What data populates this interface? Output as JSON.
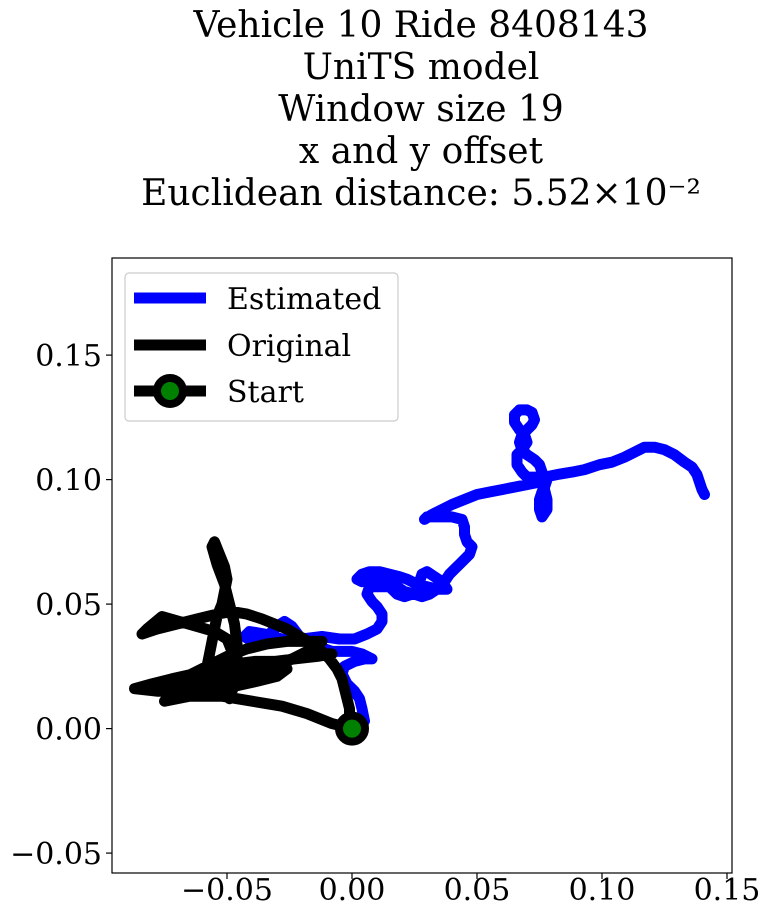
{
  "chart_data": {
    "type": "line",
    "title_lines": [
      "Vehicle 10 Ride 8408143",
      "UniTS model",
      "Window size 19",
      "x and y offset",
      "Euclidean distance: 5.52×10⁻²"
    ],
    "xlabel": "",
    "ylabel": "",
    "xlim": [
      -0.096,
      0.152
    ],
    "ylim": [
      -0.058,
      0.189
    ],
    "xticks": [
      -0.05,
      0.0,
      0.05,
      0.1,
      0.15
    ],
    "xtick_labels": [
      "−0.05",
      "0.00",
      "0.05",
      "0.10",
      "0.15"
    ],
    "yticks": [
      -0.05,
      0.0,
      0.05,
      0.1,
      0.15
    ],
    "ytick_labels": [
      "−0.05",
      "0.00",
      "0.05",
      "0.10",
      "0.15"
    ],
    "grid": false,
    "legend_position": "upper-left",
    "series": [
      {
        "name": "Estimated",
        "color": "#0000ff",
        "points": [
          [
            0.005,
            0.003
          ],
          [
            0.004,
            0.008
          ],
          [
            0.003,
            0.012
          ],
          [
            0.001,
            0.015
          ],
          [
            -0.002,
            0.018
          ],
          [
            -0.004,
            0.022
          ],
          [
            -0.003,
            0.025
          ],
          [
            0.001,
            0.027
          ],
          [
            0.005,
            0.028
          ],
          [
            0.008,
            0.028
          ],
          [
            0.004,
            0.03
          ],
          [
            0.0,
            0.031
          ],
          [
            -0.004,
            0.031
          ],
          [
            -0.008,
            0.031
          ],
          [
            -0.011,
            0.032
          ],
          [
            -0.014,
            0.033
          ],
          [
            -0.017,
            0.035
          ],
          [
            -0.021,
            0.037
          ],
          [
            -0.024,
            0.041
          ],
          [
            -0.027,
            0.043
          ],
          [
            -0.03,
            0.041
          ],
          [
            -0.033,
            0.038
          ],
          [
            -0.036,
            0.036
          ],
          [
            -0.04,
            0.035
          ],
          [
            -0.043,
            0.037
          ],
          [
            -0.041,
            0.039
          ],
          [
            -0.035,
            0.038
          ],
          [
            -0.028,
            0.036
          ],
          [
            -0.02,
            0.036
          ],
          [
            -0.012,
            0.037
          ],
          [
            -0.005,
            0.036
          ],
          [
            0.001,
            0.036
          ],
          [
            0.006,
            0.038
          ],
          [
            0.01,
            0.04
          ],
          [
            0.012,
            0.043
          ],
          [
            0.012,
            0.046
          ],
          [
            0.01,
            0.049
          ],
          [
            0.008,
            0.051
          ],
          [
            0.006,
            0.054
          ],
          [
            0.007,
            0.057
          ],
          [
            0.011,
            0.057
          ],
          [
            0.015,
            0.057
          ],
          [
            0.018,
            0.054
          ],
          [
            0.021,
            0.053
          ],
          [
            0.024,
            0.054
          ],
          [
            0.026,
            0.056
          ],
          [
            0.027,
            0.059
          ],
          [
            0.028,
            0.062
          ],
          [
            0.03,
            0.063
          ],
          [
            0.033,
            0.061
          ],
          [
            0.036,
            0.059
          ],
          [
            0.038,
            0.056
          ],
          [
            0.034,
            0.056
          ],
          [
            0.03,
            0.057
          ],
          [
            0.026,
            0.058
          ],
          [
            0.022,
            0.06
          ],
          [
            0.019,
            0.061
          ],
          [
            0.015,
            0.062
          ],
          [
            0.011,
            0.063
          ],
          [
            0.007,
            0.063
          ],
          [
            0.004,
            0.062
          ],
          [
            0.002,
            0.06
          ],
          [
            0.004,
            0.059
          ],
          [
            0.008,
            0.06
          ],
          [
            0.011,
            0.059
          ],
          [
            0.014,
            0.058
          ],
          [
            0.018,
            0.057
          ],
          [
            0.021,
            0.055
          ],
          [
            0.025,
            0.054
          ],
          [
            0.028,
            0.053
          ],
          [
            0.031,
            0.054
          ],
          [
            0.034,
            0.056
          ],
          [
            0.037,
            0.059
          ],
          [
            0.039,
            0.062
          ],
          [
            0.041,
            0.064
          ],
          [
            0.043,
            0.066
          ],
          [
            0.045,
            0.068
          ],
          [
            0.047,
            0.07
          ],
          [
            0.048,
            0.073
          ],
          [
            0.046,
            0.075
          ],
          [
            0.045,
            0.078
          ],
          [
            0.045,
            0.081
          ],
          [
            0.044,
            0.084
          ],
          [
            0.04,
            0.085
          ],
          [
            0.035,
            0.085
          ],
          [
            0.03,
            0.085
          ],
          [
            0.029,
            0.084
          ],
          [
            0.032,
            0.086
          ],
          [
            0.036,
            0.088
          ],
          [
            0.04,
            0.09
          ],
          [
            0.045,
            0.092
          ],
          [
            0.05,
            0.094
          ],
          [
            0.055,
            0.095
          ],
          [
            0.06,
            0.096
          ],
          [
            0.065,
            0.097
          ],
          [
            0.07,
            0.098
          ],
          [
            0.075,
            0.099
          ],
          [
            0.078,
            0.1
          ],
          [
            0.077,
            0.097
          ],
          [
            0.076,
            0.095
          ],
          [
            0.075,
            0.092
          ],
          [
            0.075,
            0.088
          ],
          [
            0.076,
            0.085
          ],
          [
            0.078,
            0.088
          ],
          [
            0.078,
            0.092
          ],
          [
            0.077,
            0.096
          ],
          [
            0.077,
            0.1
          ],
          [
            0.076,
            0.103
          ],
          [
            0.075,
            0.106
          ],
          [
            0.073,
            0.108
          ],
          [
            0.07,
            0.11
          ],
          [
            0.068,
            0.112
          ],
          [
            0.067,
            0.115
          ],
          [
            0.068,
            0.118
          ],
          [
            0.07,
            0.12
          ],
          [
            0.072,
            0.122
          ],
          [
            0.073,
            0.124
          ],
          [
            0.072,
            0.127
          ],
          [
            0.07,
            0.128
          ],
          [
            0.067,
            0.128
          ],
          [
            0.065,
            0.126
          ],
          [
            0.065,
            0.123
          ],
          [
            0.067,
            0.12
          ],
          [
            0.069,
            0.118
          ],
          [
            0.07,
            0.115
          ],
          [
            0.068,
            0.112
          ],
          [
            0.066,
            0.11
          ],
          [
            0.066,
            0.106
          ],
          [
            0.068,
            0.103
          ],
          [
            0.07,
            0.101
          ],
          [
            0.073,
            0.101
          ],
          [
            0.077,
            0.101
          ],
          [
            0.082,
            0.102
          ],
          [
            0.088,
            0.103
          ],
          [
            0.093,
            0.104
          ],
          [
            0.099,
            0.106
          ],
          [
            0.104,
            0.107
          ],
          [
            0.109,
            0.109
          ],
          [
            0.113,
            0.111
          ],
          [
            0.117,
            0.113
          ],
          [
            0.121,
            0.113
          ],
          [
            0.125,
            0.112
          ],
          [
            0.129,
            0.11
          ],
          [
            0.133,
            0.107
          ],
          [
            0.136,
            0.105
          ],
          [
            0.138,
            0.102
          ],
          [
            0.139,
            0.099
          ],
          [
            0.14,
            0.096
          ],
          [
            0.141,
            0.094
          ]
        ]
      },
      {
        "name": "Original",
        "color": "#000000",
        "points": [
          [
            0.0,
            0.0
          ],
          [
            -0.008,
            0.002
          ],
          [
            -0.018,
            0.006
          ],
          [
            -0.028,
            0.009
          ],
          [
            -0.04,
            0.011
          ],
          [
            -0.052,
            0.013
          ],
          [
            -0.065,
            0.013
          ],
          [
            -0.075,
            0.011
          ],
          [
            -0.07,
            0.012
          ],
          [
            -0.06,
            0.015
          ],
          [
            -0.05,
            0.018
          ],
          [
            -0.042,
            0.021
          ],
          [
            -0.034,
            0.023
          ],
          [
            -0.026,
            0.024
          ],
          [
            -0.03,
            0.021
          ],
          [
            -0.038,
            0.019
          ],
          [
            -0.047,
            0.017
          ],
          [
            -0.056,
            0.016
          ],
          [
            -0.067,
            0.015
          ],
          [
            -0.078,
            0.015
          ],
          [
            -0.087,
            0.016
          ],
          [
            -0.08,
            0.018
          ],
          [
            -0.072,
            0.02
          ],
          [
            -0.063,
            0.022
          ],
          [
            -0.055,
            0.024
          ],
          [
            -0.047,
            0.026
          ],
          [
            -0.039,
            0.027
          ],
          [
            -0.031,
            0.027
          ],
          [
            -0.023,
            0.028
          ],
          [
            -0.014,
            0.029
          ],
          [
            -0.008,
            0.03
          ],
          [
            -0.012,
            0.03
          ],
          [
            -0.02,
            0.029
          ],
          [
            -0.028,
            0.027
          ],
          [
            -0.036,
            0.025
          ],
          [
            -0.044,
            0.023
          ],
          [
            -0.052,
            0.021
          ],
          [
            -0.059,
            0.02
          ],
          [
            -0.066,
            0.019
          ],
          [
            -0.072,
            0.018
          ],
          [
            -0.066,
            0.021
          ],
          [
            -0.058,
            0.025
          ],
          [
            -0.05,
            0.029
          ],
          [
            -0.042,
            0.032
          ],
          [
            -0.034,
            0.034
          ],
          [
            -0.026,
            0.035
          ],
          [
            -0.018,
            0.035
          ],
          [
            -0.012,
            0.035
          ],
          [
            -0.016,
            0.032
          ],
          [
            -0.022,
            0.029
          ],
          [
            -0.028,
            0.026
          ],
          [
            -0.034,
            0.023
          ],
          [
            -0.04,
            0.02
          ],
          [
            -0.046,
            0.018
          ],
          [
            -0.052,
            0.016
          ],
          [
            -0.056,
            0.017
          ],
          [
            -0.058,
            0.02
          ],
          [
            -0.058,
            0.025
          ],
          [
            -0.057,
            0.03
          ],
          [
            -0.056,
            0.035
          ],
          [
            -0.055,
            0.04
          ],
          [
            -0.054,
            0.045
          ],
          [
            -0.052,
            0.05
          ],
          [
            -0.051,
            0.055
          ],
          [
            -0.05,
            0.06
          ],
          [
            -0.051,
            0.065
          ],
          [
            -0.053,
            0.07
          ],
          [
            -0.055,
            0.075
          ],
          [
            -0.056,
            0.073
          ],
          [
            -0.054,
            0.066
          ],
          [
            -0.051,
            0.058
          ],
          [
            -0.049,
            0.05
          ],
          [
            -0.047,
            0.042
          ],
          [
            -0.046,
            0.034
          ],
          [
            -0.046,
            0.026
          ],
          [
            -0.047,
            0.018
          ],
          [
            -0.049,
            0.012
          ],
          [
            -0.048,
            0.017
          ],
          [
            -0.047,
            0.024
          ],
          [
            -0.048,
            0.031
          ],
          [
            -0.05,
            0.036
          ],
          [
            -0.055,
            0.039
          ],
          [
            -0.062,
            0.041
          ],
          [
            -0.069,
            0.043
          ],
          [
            -0.076,
            0.045
          ],
          [
            -0.082,
            0.04
          ],
          [
            -0.084,
            0.038
          ],
          [
            -0.078,
            0.04
          ],
          [
            -0.07,
            0.042
          ],
          [
            -0.062,
            0.044
          ],
          [
            -0.054,
            0.046
          ],
          [
            -0.048,
            0.047
          ],
          [
            -0.042,
            0.046
          ],
          [
            -0.036,
            0.044
          ],
          [
            -0.031,
            0.042
          ],
          [
            -0.026,
            0.04
          ],
          [
            -0.021,
            0.037
          ],
          [
            -0.016,
            0.034
          ],
          [
            -0.012,
            0.031
          ],
          [
            -0.009,
            0.028
          ],
          [
            -0.006,
            0.024
          ],
          [
            -0.004,
            0.02
          ],
          [
            -0.003,
            0.016
          ],
          [
            -0.002,
            0.012
          ],
          [
            -0.001,
            0.008
          ],
          [
            -0.001,
            0.004
          ],
          [
            0.0,
            0.0
          ]
        ]
      }
    ],
    "start_point": {
      "name": "Start",
      "x": 0.0,
      "y": 0.0,
      "fill": "#008000",
      "edge": "#000000"
    }
  }
}
